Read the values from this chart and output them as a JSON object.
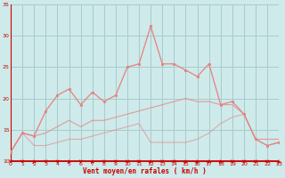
{
  "x": [
    0,
    1,
    2,
    3,
    4,
    5,
    6,
    7,
    8,
    9,
    10,
    11,
    12,
    13,
    14,
    15,
    16,
    17,
    18,
    19,
    20,
    21,
    22,
    23
  ],
  "line_rafales": [
    11.5,
    14.5,
    14.0,
    18.0,
    20.5,
    21.5,
    19.0,
    21.0,
    19.5,
    20.5,
    25.0,
    25.5,
    31.5,
    25.5,
    25.5,
    24.5,
    23.5,
    25.5,
    19.0,
    19.5,
    17.5,
    13.5,
    12.5,
    13.0
  ],
  "line_upper": [
    11.5,
    14.5,
    14.0,
    14.5,
    15.5,
    16.5,
    15.5,
    16.5,
    16.5,
    17.0,
    17.5,
    18.0,
    18.5,
    19.0,
    19.5,
    20.0,
    19.5,
    19.5,
    19.0,
    19.0,
    17.5,
    13.5,
    13.5,
    13.5
  ],
  "line_lower": [
    11.5,
    14.5,
    12.5,
    12.5,
    13.0,
    13.5,
    13.5,
    14.0,
    14.5,
    15.0,
    15.5,
    16.0,
    13.0,
    13.0,
    13.0,
    13.0,
    13.5,
    14.5,
    16.0,
    17.0,
    17.5,
    13.5,
    12.5,
    13.0
  ],
  "arrow_angles": [
    90,
    90,
    75,
    90,
    90,
    75,
    90,
    75,
    90,
    90,
    90,
    90,
    75,
    90,
    90,
    75,
    75,
    75,
    75,
    90,
    90,
    90,
    90,
    75
  ],
  "bg_color": "#ceeaea",
  "line_color": "#e88080",
  "marker_color": "#e88080",
  "grid_color": "#a8cccc",
  "axis_color": "#cc0000",
  "text_color": "#cc0000",
  "xlabel": "Vent moyen/en rafales ( km/h )",
  "ylim": [
    10,
    35
  ],
  "xlim": [
    0,
    23
  ],
  "yticks": [
    10,
    15,
    20,
    25,
    30,
    35
  ],
  "xticks": [
    0,
    1,
    2,
    3,
    4,
    5,
    6,
    7,
    8,
    9,
    10,
    11,
    12,
    13,
    14,
    15,
    16,
    17,
    18,
    19,
    20,
    21,
    22,
    23
  ]
}
